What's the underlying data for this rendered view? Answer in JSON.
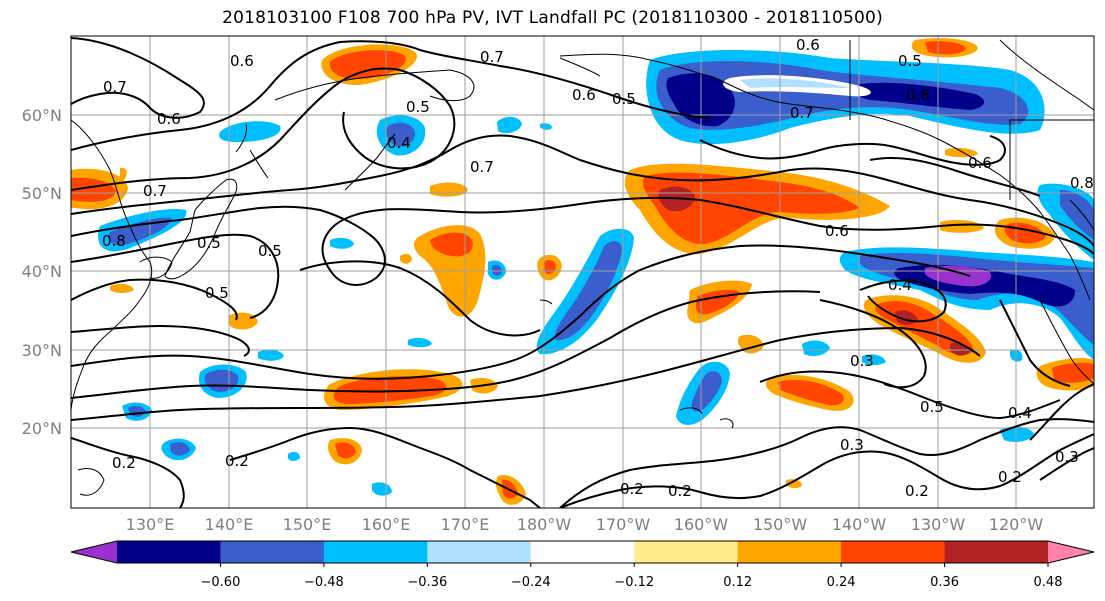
{
  "title": "2018103100 F108 700 hPa PV, IVT Landfall PC (2018110300 - 2018110500)",
  "map": {
    "lat_labels": [
      "60°N",
      "50°N",
      "40°N",
      "30°N",
      "20°N"
    ],
    "lon_labels": [
      "130°E",
      "140°E",
      "150°E",
      "160°E",
      "170°E",
      "180°W",
      "170°W",
      "160°W",
      "150°W",
      "140°W",
      "130°W",
      "120°W"
    ],
    "contour_labels": [
      "0.6",
      "0.7",
      "0.6",
      "0.7",
      "0.8",
      "0.5",
      "0.5",
      "0.2",
      "0.2",
      "0.7",
      "0.6",
      "0.5",
      "0.5",
      "0.4",
      "0.6",
      "0.8",
      "0.6",
      "0.6",
      "0.8",
      "0.4",
      "0.3",
      "0.5",
      "0.4",
      "0.3",
      "0.2",
      "0.2",
      "0.2",
      "0.2",
      "0.3",
      "0.7",
      "0.7",
      "0.5",
      "0.5"
    ]
  },
  "colorbar": {
    "colors": [
      "#9932cc",
      "#00008b",
      "#3a5fcd",
      "#00bfff",
      "#b0e2ff",
      "#ffffff",
      "#ffec8b",
      "#ffa500",
      "#ff4500",
      "#b22222",
      "#ff82ab"
    ],
    "tick_labels": [
      "−0.60",
      "−0.48",
      "−0.36",
      "−0.24",
      "−0.12",
      "0.12",
      "0.24",
      "0.36",
      "0.48",
      "0.60"
    ]
  }
}
